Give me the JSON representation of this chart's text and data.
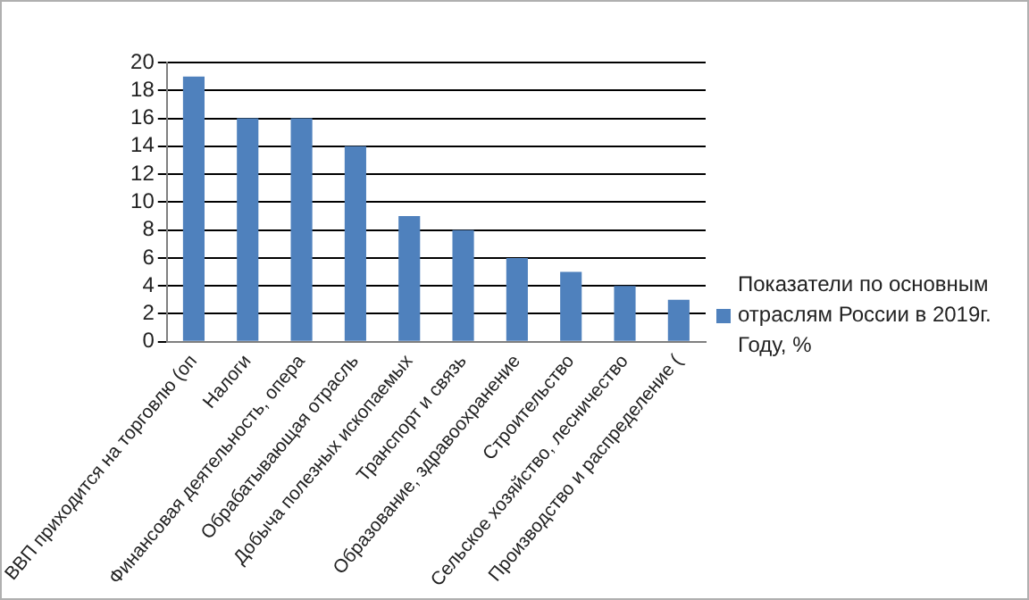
{
  "chart_data": {
    "type": "bar",
    "categories": [
      "ВВП приходится на торговлю (оп",
      "Налоги",
      "Финансовая деятельность, опера",
      "Обрабатывающая отрасль",
      "Добыча полезных ископаемых",
      "Транспорт и связь",
      "Образование, здравоохранение",
      "Строительство",
      "Сельское хозяйство, лесничество",
      "Производство и распределение ("
    ],
    "series": [
      {
        "name": "Показатели по основным отраслям России в 2019г. Году, %",
        "color": "#4f81bd",
        "values": [
          19,
          16,
          16,
          14,
          9,
          8,
          6,
          5,
          4,
          3
        ]
      }
    ],
    "ylim": [
      0,
      20
    ],
    "yticks": [
      0,
      2,
      4,
      6,
      8,
      10,
      12,
      14,
      16,
      18,
      20
    ],
    "grid": "y",
    "legend": "right"
  }
}
